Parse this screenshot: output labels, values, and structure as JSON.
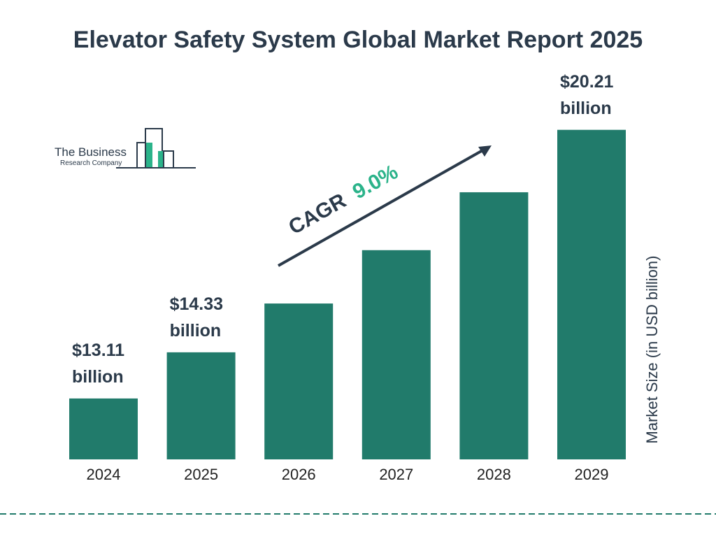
{
  "chart_data": {
    "type": "bar",
    "title": "Elevator Safety System Global Market Report 2025",
    "categories": [
      "2024",
      "2025",
      "2026",
      "2027",
      "2028",
      "2029"
    ],
    "values": [
      13.11,
      14.33,
      15.62,
      17.03,
      18.56,
      20.21
    ],
    "value_labels": [
      "$13.11 billion",
      "$14.33 billion",
      null,
      null,
      null,
      "$20.21 billion"
    ],
    "color": "#217b6b",
    "ylim": [
      11.5,
      20.5
    ],
    "y_label": "Market Size (in USD billion)",
    "annotation": {
      "label": "CAGR",
      "value": "9.0%"
    },
    "logo": {
      "line1": "The Business",
      "line2": "Research Company"
    }
  }
}
